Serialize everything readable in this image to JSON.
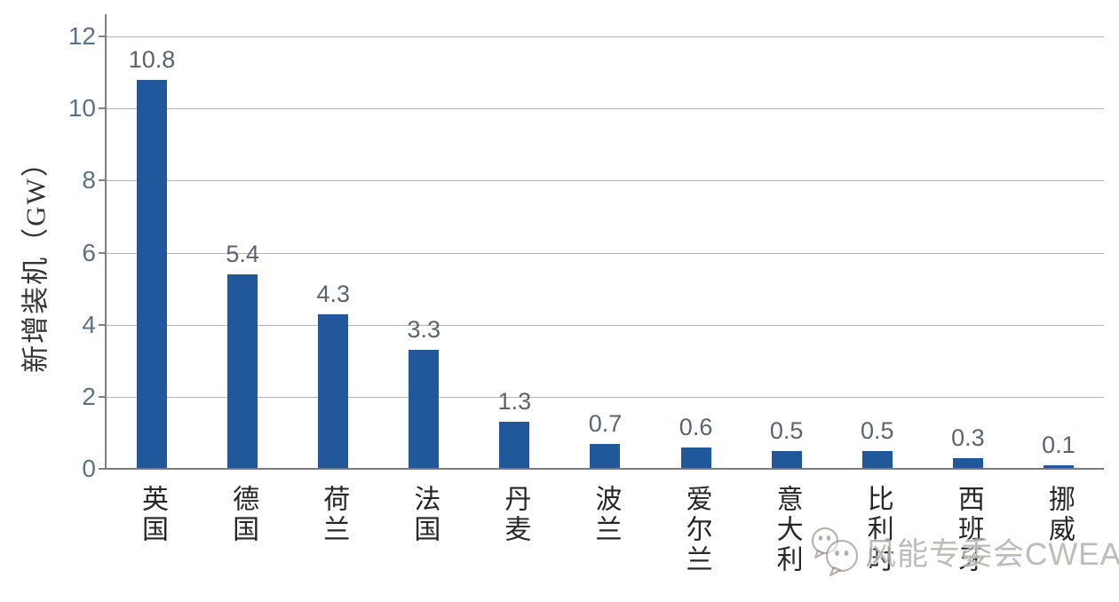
{
  "chart_data": {
    "type": "bar",
    "categories": [
      "英国",
      "德国",
      "荷兰",
      "法国",
      "丹麦",
      "波兰",
      "爱尔兰",
      "意大利",
      "比利时",
      "西班牙",
      "挪威"
    ],
    "values": [
      10.8,
      5.4,
      4.3,
      3.3,
      1.3,
      0.7,
      0.6,
      0.5,
      0.5,
      0.3,
      0.1
    ],
    "value_labels": [
      "10.8",
      "5.4",
      "4.3",
      "3.3",
      "1.3",
      "0.7",
      "0.6",
      "0.5",
      "0.5",
      "0.3",
      "0.1"
    ],
    "title": "",
    "xlabel": "",
    "ylabel": "新增装机（GW）",
    "ylim": [
      0,
      12
    ],
    "yticks": [
      0,
      2,
      4,
      6,
      8,
      10,
      12
    ],
    "grid": true,
    "legend": null,
    "bar_color": "#21579B",
    "gridline_color": "#b3b3b3",
    "axis_color": "#808080",
    "tick_label_color": "#5d7184",
    "value_label_color": "#5a6470"
  },
  "watermark": {
    "icon": "wechat-icon",
    "text": "风能专委会CWEA"
  }
}
